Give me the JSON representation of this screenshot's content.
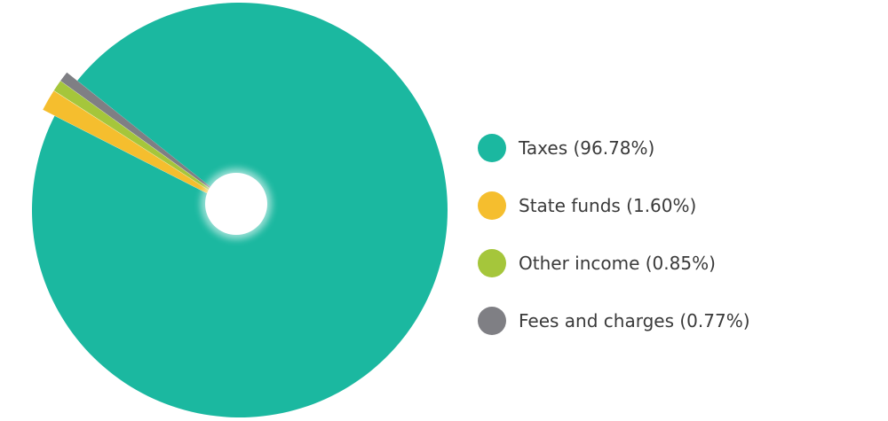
{
  "chart_data": {
    "type": "pie",
    "categories": [
      "Taxes",
      "State funds",
      "Other income",
      "Fees and charges"
    ],
    "values": [
      96.78,
      1.6,
      0.85,
      0.77
    ],
    "colors": [
      "#1BB8A0",
      "#F5BE2E",
      "#A5C63B",
      "#7F7F84"
    ],
    "legend_labels": [
      "Taxes (96.78%)",
      "State funds (1.60%)",
      "Other income (0.85%)",
      "Fees and charges (0.77%)"
    ],
    "legend_position": "right",
    "exploded_slices": [
      "State funds",
      "Other income",
      "Fees and charges"
    ],
    "center_hole": true
  }
}
